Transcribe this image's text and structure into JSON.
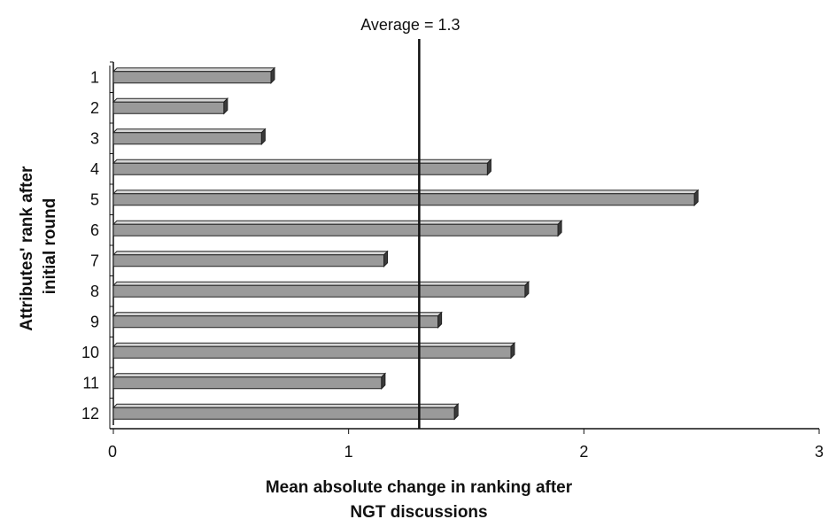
{
  "chart_data": {
    "type": "bar",
    "orientation": "horizontal",
    "categories": [
      "1",
      "2",
      "3",
      "4",
      "5",
      "6",
      "7",
      "8",
      "9",
      "10",
      "11",
      "12"
    ],
    "values": [
      0.67,
      0.47,
      0.63,
      1.59,
      2.47,
      1.89,
      1.15,
      1.75,
      1.38,
      1.69,
      1.14,
      1.45
    ],
    "title": "",
    "xlabel_lines": [
      "Mean absolute change in ranking after",
      "NGT discussions"
    ],
    "ylabel_lines": [
      "Attributes' rank after",
      "initial round"
    ],
    "xlim": [
      0,
      3
    ],
    "xticks": [
      "0",
      "1",
      "2",
      "3"
    ],
    "reference_line": {
      "value": 1.3,
      "label": "Average = 1.3"
    },
    "grid": false,
    "legend": "none",
    "bar_color": "#9a9a9a",
    "bar_edge_color": "#222222"
  }
}
